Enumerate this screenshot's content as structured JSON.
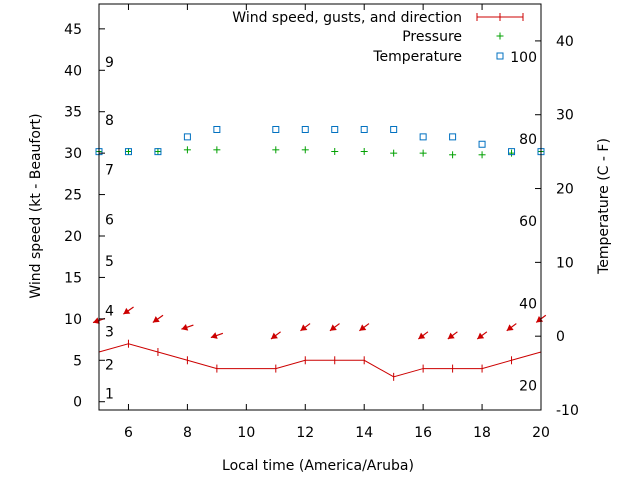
{
  "chart_data": {
    "type": "line",
    "xlabel": "Local time (America/Aruba)",
    "ylabel": "Wind speed (kt - Beaufort)",
    "y2label": "Temperature (C - F)",
    "xlim": [
      5,
      20
    ],
    "ylim": [
      -1,
      48
    ],
    "y2lim": [
      -10,
      45
    ],
    "x_ticks": [
      6,
      8,
      10,
      12,
      14,
      16,
      18,
      20
    ],
    "y_ticks": [
      0,
      5,
      10,
      15,
      20,
      25,
      30,
      35,
      40,
      45
    ],
    "y2_ticks": [
      -10,
      0,
      10,
      20,
      30,
      40
    ],
    "beaufort_labels": [
      {
        "label": "1",
        "y": 1
      },
      {
        "label": "2",
        "y": 4.5
      },
      {
        "label": "3",
        "y": 8.5
      },
      {
        "label": "4",
        "y": 11
      },
      {
        "label": "5",
        "y": 17
      },
      {
        "label": "6",
        "y": 22
      },
      {
        "label": "7",
        "y": 28
      },
      {
        "label": "8",
        "y": 34
      },
      {
        "label": "9",
        "y": 41
      }
    ],
    "fahrenheit_labels": [
      {
        "label": "20",
        "y2": -6.7
      },
      {
        "label": "40",
        "y2": 4.4
      },
      {
        "label": "60",
        "y2": 15.6
      },
      {
        "label": "80",
        "y2": 26.7
      },
      {
        "label": "100",
        "y2": 37.8
      }
    ],
    "legend_position": "top-right",
    "series": [
      {
        "name": "Wind speed, gusts, and direction",
        "color": "#cc0000",
        "marker": "line-plus",
        "x": [
          5,
          6,
          7,
          8,
          9,
          11,
          12,
          13,
          14,
          15,
          16,
          17,
          18,
          19,
          20
        ],
        "values": [
          6,
          7,
          6,
          5,
          4,
          4,
          5,
          5,
          5,
          3,
          4,
          4,
          4,
          5,
          6
        ],
        "direction_arrows": [
          {
            "x": 5,
            "y": 9.8,
            "dir": "W"
          },
          {
            "x": 6,
            "y": 11,
            "dir": "NW"
          },
          {
            "x": 7,
            "y": 10,
            "dir": "NW"
          },
          {
            "x": 8,
            "y": 9,
            "dir": "W"
          },
          {
            "x": 9,
            "y": 8,
            "dir": "W"
          },
          {
            "x": 11,
            "y": 8,
            "dir": "NE"
          },
          {
            "x": 12,
            "y": 9,
            "dir": "NE"
          },
          {
            "x": 13,
            "y": 9,
            "dir": "NE"
          },
          {
            "x": 14,
            "y": 9,
            "dir": "NE"
          },
          {
            "x": 16,
            "y": 8,
            "dir": "NE"
          },
          {
            "x": 17,
            "y": 8,
            "dir": "NE"
          },
          {
            "x": 18,
            "y": 8,
            "dir": "NE"
          },
          {
            "x": 19,
            "y": 9,
            "dir": "NE"
          },
          {
            "x": 20,
            "y": 10,
            "dir": "NE"
          }
        ]
      },
      {
        "name": "Pressure",
        "color": "#00a000",
        "marker": "plus",
        "x": [
          5,
          6,
          7,
          8,
          9,
          11,
          12,
          13,
          14,
          15,
          16,
          17,
          18,
          19,
          20
        ],
        "values": [
          30.2,
          30.2,
          30.2,
          30.4,
          30.4,
          30.4,
          30.4,
          30.2,
          30.2,
          30.0,
          30.0,
          29.8,
          29.8,
          30.0,
          30.2
        ]
      },
      {
        "name": "Temperature",
        "color": "#0070c0",
        "marker": "square",
        "axis": "y2",
        "x": [
          5,
          6,
          7,
          8,
          9,
          11,
          12,
          13,
          14,
          15,
          16,
          17,
          18,
          19,
          20
        ],
        "values": [
          25,
          25,
          25,
          27,
          28,
          28,
          28,
          28,
          28,
          28,
          27,
          27,
          26,
          25,
          25
        ]
      }
    ]
  }
}
